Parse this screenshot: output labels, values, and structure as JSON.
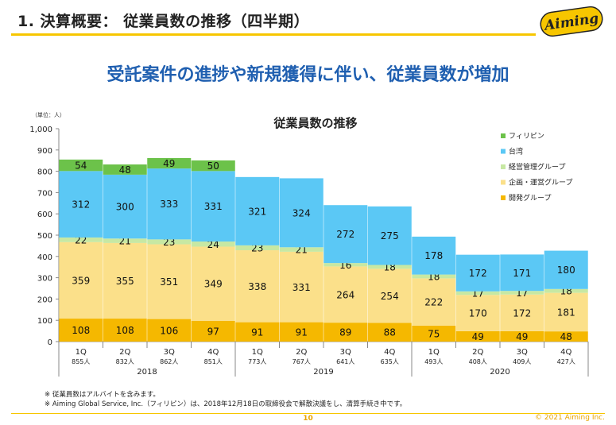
{
  "header": {
    "title": "1. 決算概要： 従業員数の推移（四半期）",
    "logo_text": "Aiming",
    "headline": "受託案件の進捗や新規獲得に伴い、従業員数が増加"
  },
  "footer": {
    "note1": "※ 従業員数はアルバイトを含みます。",
    "note2": "※ Aiming Global Service, Inc.（フィリピン）は、2018年12月18日の取締役会で解散決議をし、清算手続き中です。",
    "page_number": "10",
    "copyright": "© 2021 Aiming Inc."
  },
  "colors": {
    "accent": "#f7c600",
    "headline": "#1f5fb0"
  },
  "chart_data": {
    "type": "bar",
    "stacked": true,
    "title": "従業員数の推移",
    "unit_label": "（単位：人）",
    "ylim": [
      0,
      1000
    ],
    "yticks": [
      "0",
      "100",
      "200",
      "300",
      "400",
      "500",
      "600",
      "700",
      "800",
      "900",
      "1,000"
    ],
    "categories": [
      "1Q",
      "2Q",
      "3Q",
      "4Q",
      "1Q",
      "2Q",
      "3Q",
      "4Q",
      "1Q",
      "2Q",
      "3Q",
      "4Q"
    ],
    "totals": [
      "855人",
      "832人",
      "862人",
      "851人",
      "773人",
      "767人",
      "641人",
      "635人",
      "493人",
      "408人",
      "409人",
      "427人"
    ],
    "years": [
      {
        "label": "2018",
        "start": 0,
        "end": 3
      },
      {
        "label": "2019",
        "start": 4,
        "end": 7
      },
      {
        "label": "2020",
        "start": 8,
        "end": 11
      }
    ],
    "legend_position": "right",
    "series": [
      {
        "name": "開発グループ",
        "color": "#f5b800",
        "values": [
          108,
          108,
          106,
          97,
          91,
          91,
          89,
          88,
          75,
          49,
          49,
          48
        ]
      },
      {
        "name": "企画・運営グループ",
        "color": "#fbe08a",
        "values": [
          359,
          355,
          351,
          349,
          338,
          331,
          264,
          254,
          222,
          170,
          172,
          181
        ]
      },
      {
        "name": "経営管理グループ",
        "color": "#c7e8a3",
        "values": [
          22,
          21,
          23,
          24,
          23,
          21,
          16,
          18,
          18,
          17,
          17,
          18
        ]
      },
      {
        "name": "台湾",
        "color": "#5bc8f5",
        "values": [
          312,
          300,
          333,
          331,
          321,
          324,
          272,
          275,
          178,
          172,
          171,
          180
        ]
      },
      {
        "name": "フィリピン",
        "color": "#6cc24a",
        "values": [
          54,
          48,
          49,
          50,
          null,
          null,
          null,
          null,
          null,
          null,
          null,
          null
        ]
      }
    ],
    "legend_order": [
      "フィリピン",
      "台湾",
      "経営管理グループ",
      "企画・運営グループ",
      "開発グループ"
    ]
  }
}
